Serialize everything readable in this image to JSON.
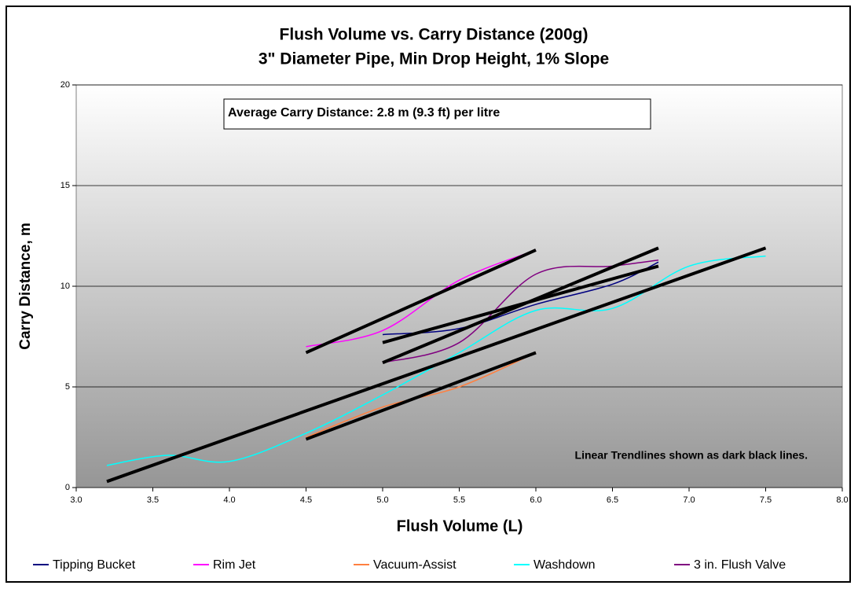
{
  "chart_data": {
    "type": "line",
    "title": "Flush Volume vs. Carry Distance (200g)",
    "subtitle": "3\" Diameter Pipe, Min Drop Height, 1% Slope",
    "x_label": "Flush Volume (L)",
    "y_label": "Carry Distance, m",
    "annotations": [
      "Average Carry Distance: 2.8 m (9.3 ft) per litre",
      "Linear Trendlines shown as dark black lines."
    ],
    "xlim": [
      3,
      8
    ],
    "ylim": [
      0,
      20
    ],
    "xticks": [
      {
        "value": 3,
        "label": "3.0"
      },
      {
        "value": 3.5,
        "label": "3.5"
      },
      {
        "value": 4,
        "label": "4.0"
      },
      {
        "value": 4.5,
        "label": "4.5"
      },
      {
        "value": 5,
        "label": "5.0"
      },
      {
        "value": 5.5,
        "label": "5.5"
      },
      {
        "value": 6,
        "label": "6.0"
      },
      {
        "value": 6.5,
        "label": "6.5"
      },
      {
        "value": 7,
        "label": "7.0"
      },
      {
        "value": 7.5,
        "label": "7.5"
      },
      {
        "value": 8,
        "label": "8.0"
      }
    ],
    "yticks": [
      0,
      5,
      10,
      15,
      20
    ],
    "grid": true,
    "smooth": true,
    "legend": "bottom",
    "series": [
      {
        "name": "Tipping Bucket",
        "color": "#000080",
        "x": [
          5.0,
          5.5,
          6.0,
          6.5,
          6.8
        ],
        "values": [
          7.6,
          7.9,
          9.1,
          10.1,
          11.2
        ]
      },
      {
        "name": "Rim Jet",
        "color": "#ff00ff",
        "x": [
          4.5,
          5.0,
          5.5,
          6.0
        ],
        "values": [
          7.0,
          7.8,
          10.3,
          11.8
        ]
      },
      {
        "name": "Vacuum-Assist",
        "color": "#ff8040",
        "x": [
          4.5,
          5.0,
          5.5,
          6.0
        ],
        "values": [
          2.5,
          4.0,
          5.0,
          6.7
        ]
      },
      {
        "name": "Washdown",
        "color": "#00ffff",
        "x": [
          3.2,
          3.6,
          4.0,
          4.5,
          5.0,
          5.5,
          6.0,
          6.5,
          7.0,
          7.5
        ],
        "values": [
          1.1,
          1.6,
          1.3,
          2.7,
          4.6,
          6.7,
          8.8,
          8.9,
          11.0,
          11.5
        ]
      },
      {
        "name": "3 in. Flush Valve",
        "color": "#800080",
        "x": [
          5.0,
          5.5,
          6.0,
          6.5,
          6.8
        ],
        "values": [
          6.2,
          7.2,
          10.6,
          11.0,
          11.3
        ]
      }
    ],
    "trendlines": [
      {
        "color": "#000000",
        "x": [
          4.5,
          6.0
        ],
        "values": [
          6.7,
          11.8
        ]
      },
      {
        "color": "#000000",
        "x": [
          5.0,
          6.8
        ],
        "values": [
          7.2,
          11.0
        ]
      },
      {
        "color": "#000000",
        "x": [
          5.0,
          6.8
        ],
        "values": [
          6.2,
          11.9
        ]
      },
      {
        "color": "#000000",
        "x": [
          3.2,
          7.5
        ],
        "values": [
          0.3,
          11.9
        ]
      },
      {
        "color": "#000000",
        "x": [
          4.5,
          6.0
        ],
        "values": [
          2.4,
          6.7
        ]
      }
    ]
  }
}
